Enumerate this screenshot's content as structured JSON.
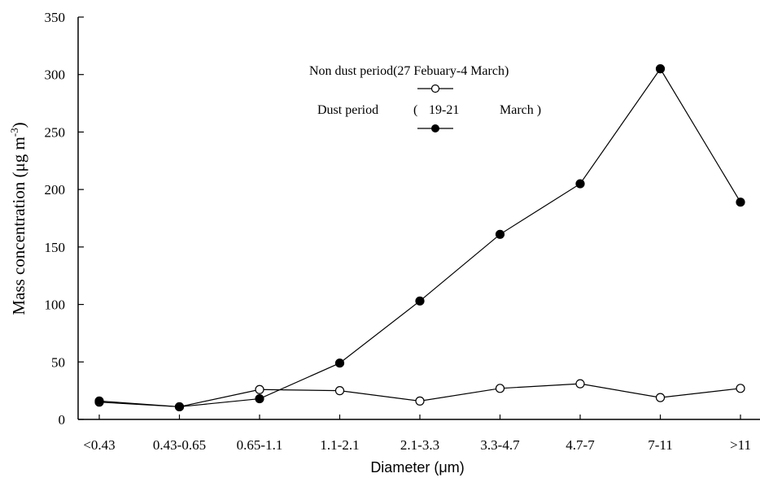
{
  "chart_data": {
    "type": "line",
    "categories": [
      "<0.43",
      "0.43-0.65",
      "0.65-1.1",
      "1.1-2.1",
      "2.1-3.3",
      "3.3-4.7",
      "4.7-7",
      "7-11",
      ">11"
    ],
    "xlabel": "Diameter (μm)",
    "ylabel": "Mass concentration (μg m-3)",
    "ylabel_main": "Mass concentration (μg m",
    "ylabel_sup": "-3",
    "ylabel_end": ")",
    "ylim": [
      0,
      350
    ],
    "yticks": [
      0,
      50,
      100,
      150,
      200,
      250,
      300,
      350
    ],
    "grid": false,
    "legend_position": "top-center",
    "series": [
      {
        "name": "Non dust period(27 Febuary-4 March)",
        "marker": "open-circle",
        "values": [
          15,
          11,
          26,
          25,
          16,
          27,
          31,
          19,
          27
        ]
      },
      {
        "name": "Dust period ( 19-21 March )",
        "name_parts": [
          "Dust period",
          "(",
          "19-21",
          "March )"
        ],
        "marker": "filled-circle",
        "values": [
          16,
          11,
          18,
          49,
          103,
          161,
          205,
          305,
          189
        ]
      }
    ]
  }
}
